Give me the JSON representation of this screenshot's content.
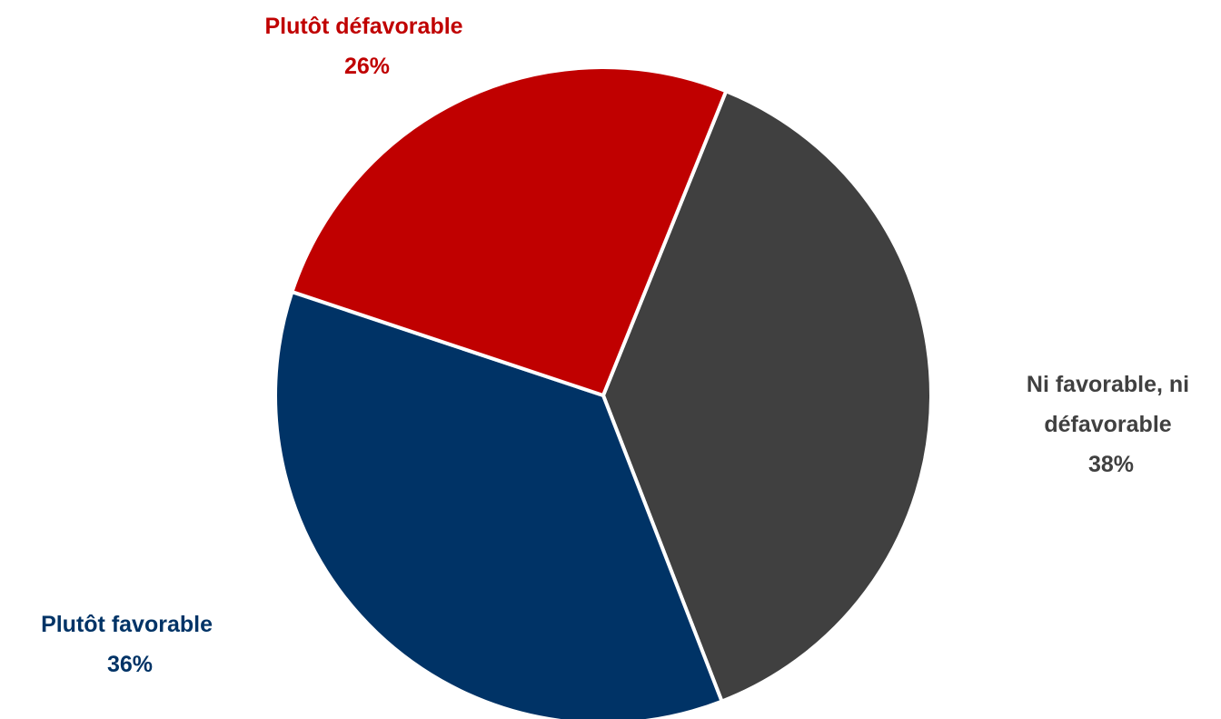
{
  "chart_data": {
    "type": "pie",
    "slices": [
      {
        "label_lines": [
          "Ni favorable, ni",
          "défavorable"
        ],
        "value": 38,
        "value_label": "38%",
        "color": "#404040"
      },
      {
        "label_lines": [
          "Plutôt favorable"
        ],
        "value": 36,
        "value_label": "36%",
        "color": "#003366"
      },
      {
        "label_lines": [
          "Plutôt défavorable"
        ],
        "value": 26,
        "value_label": "26%",
        "color": "#C00000"
      }
    ],
    "label_colors": [
      "#404040",
      "#003366",
      "#C00000"
    ],
    "start_angle_deg": 22,
    "direction": "clockwise",
    "separator_color": "#ffffff"
  }
}
